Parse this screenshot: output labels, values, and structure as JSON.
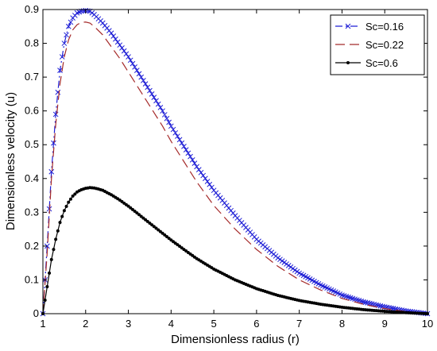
{
  "chart_data": {
    "type": "line",
    "title": "",
    "xlabel": "Dimensionless radius (r)",
    "ylabel": "Dimensionless velocity (u)",
    "xlim": [
      1,
      10
    ],
    "ylim": [
      0,
      0.9
    ],
    "xticks": [
      "1",
      "2",
      "3",
      "4",
      "5",
      "6",
      "7",
      "8",
      "9",
      "10"
    ],
    "yticks": [
      "0",
      "0.1",
      "0.2",
      "0.3",
      "0.4",
      "0.5",
      "0.6",
      "0.7",
      "0.8",
      "0.9"
    ],
    "grid": false,
    "legend_position": "top-right",
    "series": [
      {
        "name": "Sc=0.16",
        "color": "#1f1fd6",
        "line_style": "dash-dot",
        "marker": "x",
        "x": [
          1.0,
          1.1,
          1.2,
          1.3,
          1.4,
          1.5,
          1.6,
          1.7,
          1.8,
          1.9,
          2.0,
          2.1,
          2.2,
          2.4,
          2.6,
          2.8,
          3.0,
          3.2,
          3.4,
          3.6,
          3.8,
          4.0,
          4.3,
          4.6,
          5.0,
          5.5,
          6.0,
          6.5,
          7.0,
          7.5,
          8.0,
          8.5,
          9.0,
          9.5,
          10.0
        ],
        "y": [
          0.0,
          0.2,
          0.42,
          0.59,
          0.72,
          0.8,
          0.85,
          0.875,
          0.89,
          0.895,
          0.897,
          0.895,
          0.885,
          0.86,
          0.83,
          0.795,
          0.76,
          0.72,
          0.68,
          0.64,
          0.6,
          0.555,
          0.495,
          0.435,
          0.365,
          0.29,
          0.22,
          0.165,
          0.12,
          0.085,
          0.055,
          0.035,
          0.02,
          0.008,
          0.0
        ]
      },
      {
        "name": "Sc=0.22",
        "color": "#a52a2a",
        "line_style": "dash",
        "marker": "none",
        "x": [
          1.0,
          1.1,
          1.2,
          1.3,
          1.4,
          1.5,
          1.6,
          1.7,
          1.8,
          1.9,
          2.0,
          2.1,
          2.2,
          2.4,
          2.6,
          2.8,
          3.0,
          3.2,
          3.4,
          3.6,
          3.8,
          4.0,
          4.3,
          4.6,
          5.0,
          5.5,
          6.0,
          6.5,
          7.0,
          7.5,
          8.0,
          8.5,
          9.0,
          9.5,
          10.0
        ],
        "y": [
          0.0,
          0.18,
          0.4,
          0.56,
          0.68,
          0.76,
          0.81,
          0.84,
          0.855,
          0.862,
          0.863,
          0.86,
          0.85,
          0.825,
          0.79,
          0.755,
          0.715,
          0.675,
          0.635,
          0.595,
          0.555,
          0.51,
          0.45,
          0.39,
          0.32,
          0.25,
          0.19,
          0.14,
          0.1,
          0.07,
          0.045,
          0.028,
          0.015,
          0.006,
          0.0
        ]
      },
      {
        "name": "Sc=0.6",
        "color": "#000000",
        "line_style": "solid",
        "marker": "dot",
        "x": [
          1.0,
          1.1,
          1.2,
          1.3,
          1.4,
          1.5,
          1.6,
          1.7,
          1.8,
          1.9,
          2.0,
          2.1,
          2.2,
          2.3,
          2.4,
          2.6,
          2.8,
          3.0,
          3.2,
          3.4,
          3.6,
          3.8,
          4.0,
          4.3,
          4.6,
          5.0,
          5.5,
          6.0,
          6.5,
          7.0,
          7.5,
          8.0,
          8.5,
          9.0,
          9.5,
          10.0
        ],
        "y": [
          0.0,
          0.08,
          0.16,
          0.22,
          0.27,
          0.305,
          0.33,
          0.348,
          0.36,
          0.367,
          0.371,
          0.373,
          0.372,
          0.369,
          0.365,
          0.352,
          0.336,
          0.318,
          0.298,
          0.278,
          0.258,
          0.238,
          0.218,
          0.19,
          0.163,
          0.132,
          0.1,
          0.074,
          0.054,
          0.039,
          0.028,
          0.019,
          0.012,
          0.007,
          0.003,
          0.0
        ]
      }
    ]
  }
}
